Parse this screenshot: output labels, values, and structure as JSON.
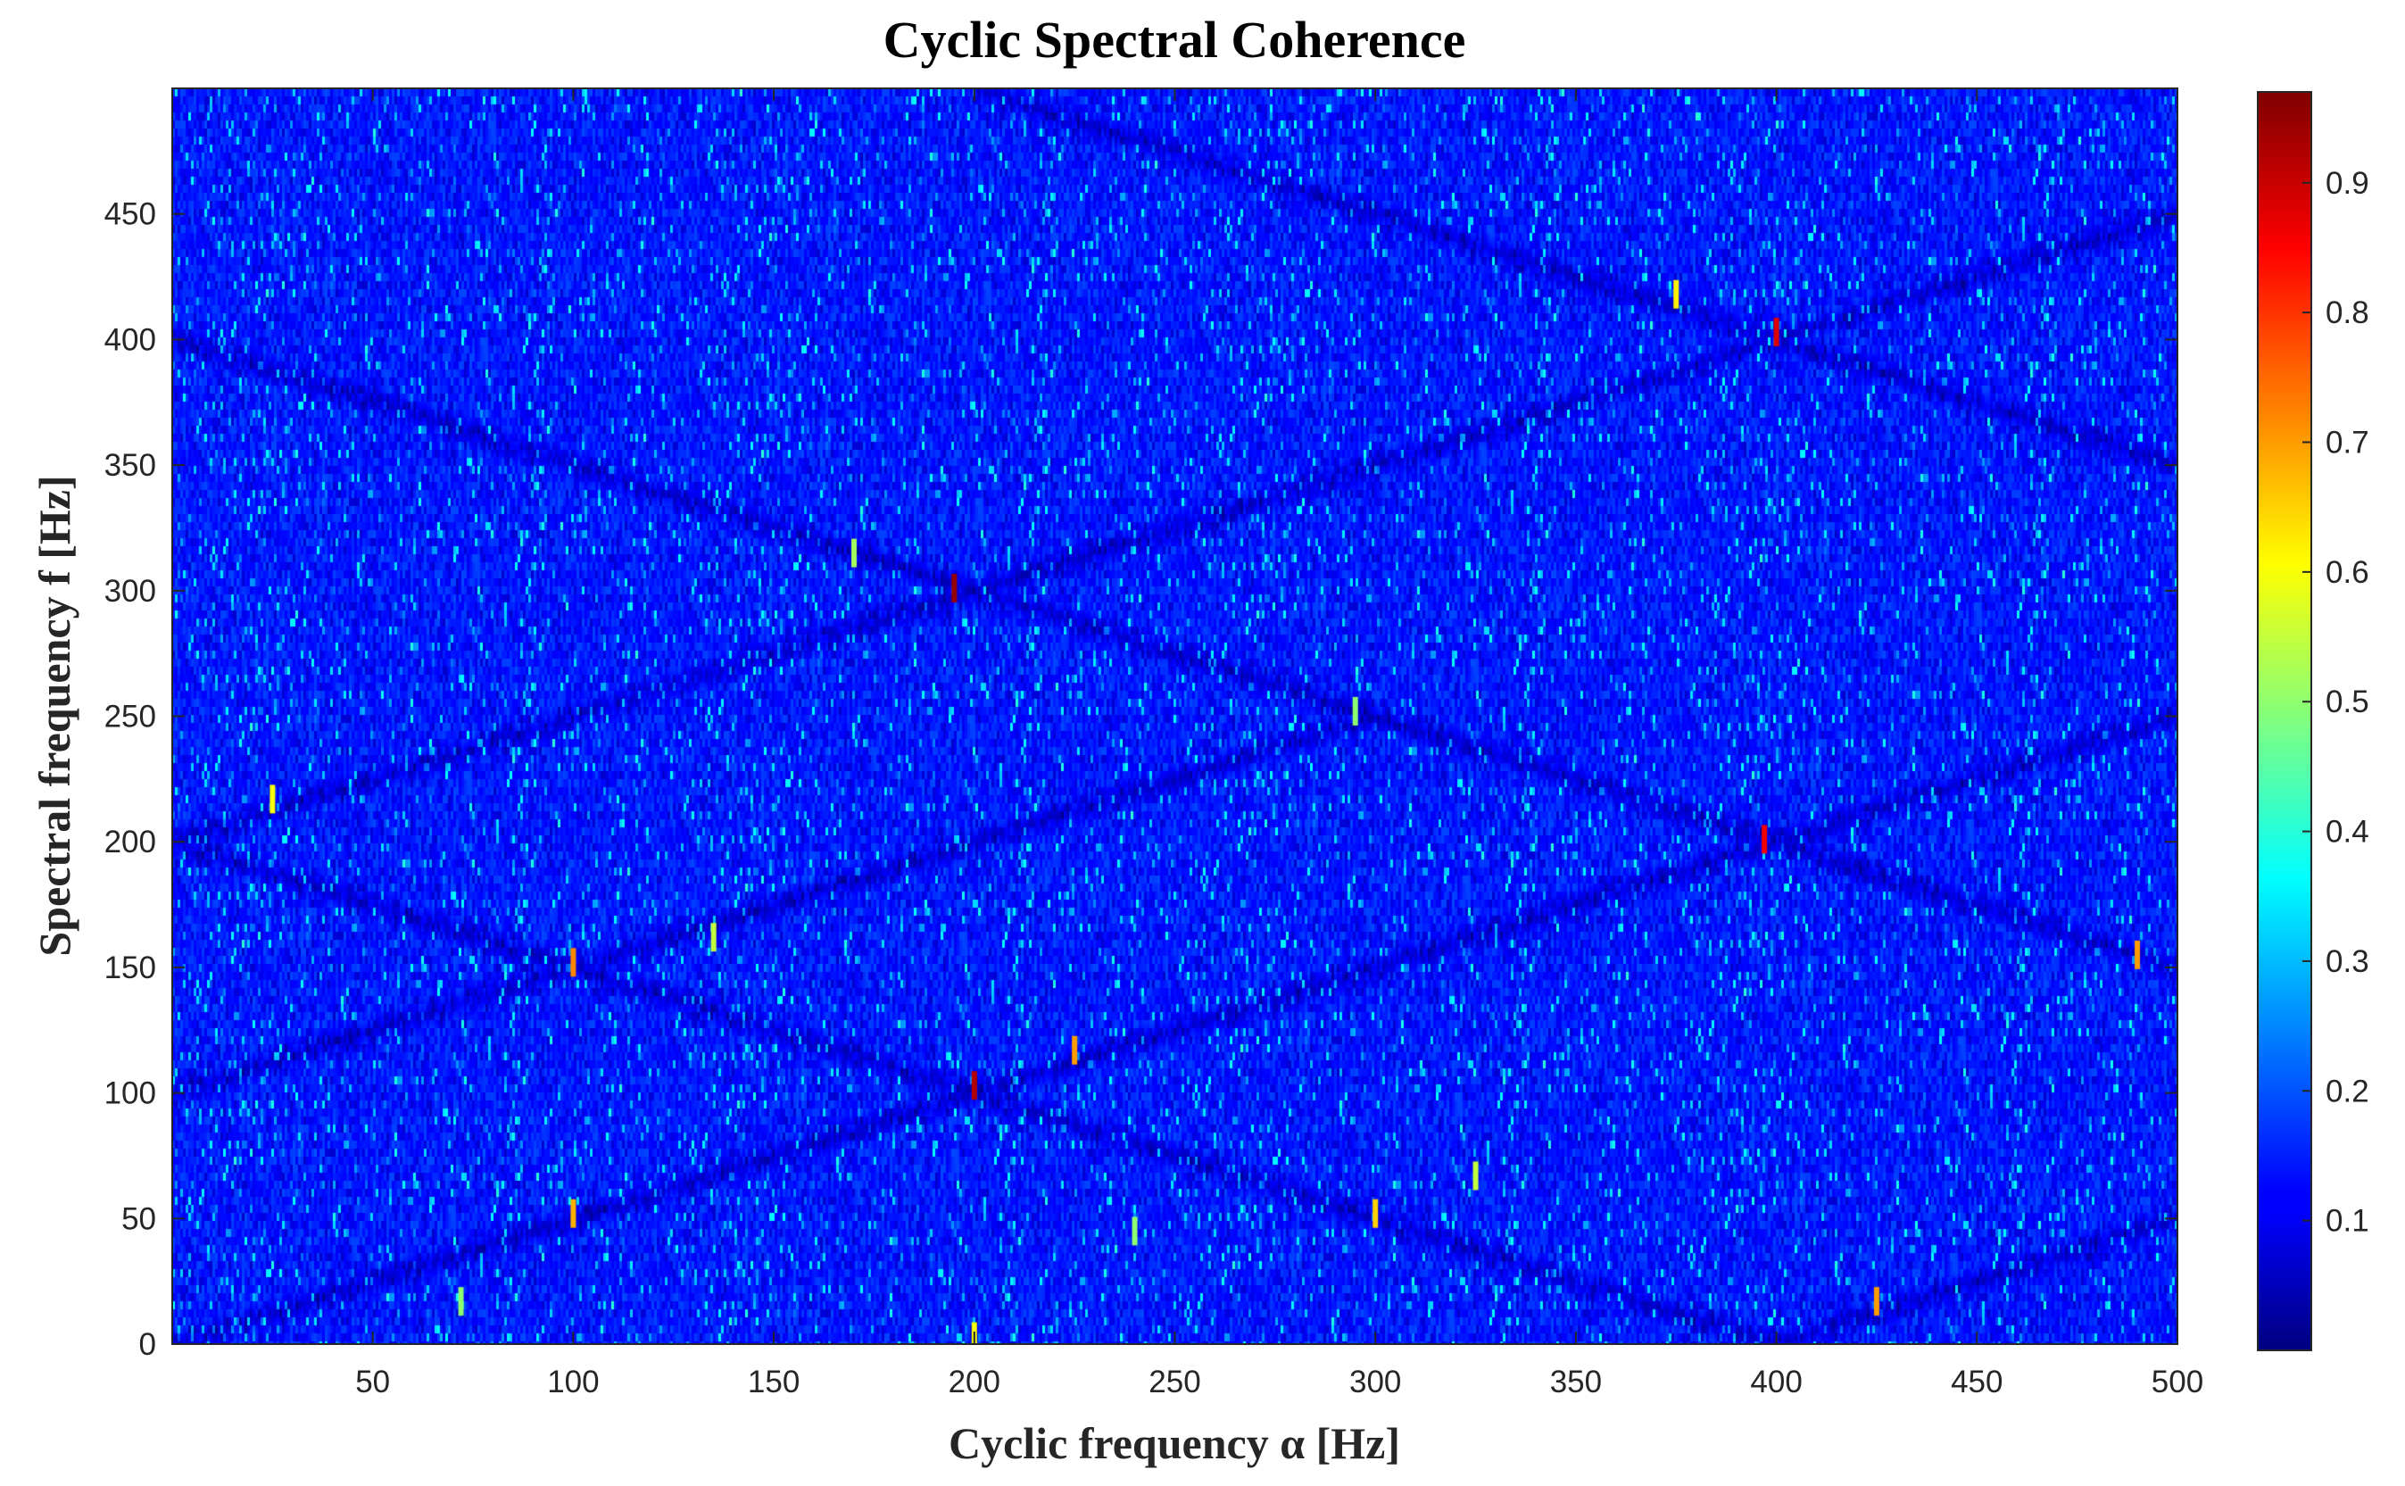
{
  "chart_data": {
    "type": "heatmap",
    "title": "Cyclic Spectral Coherence",
    "xlabel": "Cyclic frequency α [Hz]",
    "ylabel": "Spectral frequency f [Hz]",
    "xlim": [
      0,
      500
    ],
    "ylim": [
      0,
      500
    ],
    "x_ticks": [
      50,
      100,
      150,
      200,
      250,
      300,
      350,
      400,
      450,
      500
    ],
    "y_ticks": [
      0,
      50,
      100,
      150,
      200,
      250,
      300,
      350,
      400,
      450
    ],
    "colorbar": {
      "range": [
        0,
        0.97
      ],
      "ticks": [
        0.1,
        0.2,
        0.3,
        0.4,
        0.5,
        0.6,
        0.7,
        0.8,
        0.9
      ],
      "colormap": "jet"
    },
    "background_level": 0.15,
    "ridge_lines": [
      {
        "from": [
          0,
          200
        ],
        "to": [
          500,
          450
        ]
      },
      {
        "from": [
          0,
          400
        ],
        "to": [
          500,
          150
        ]
      },
      {
        "from": [
          0,
          200
        ],
        "to": [
          400,
          0
        ]
      },
      {
        "from": [
          400,
          0
        ],
        "to": [
          500,
          50
        ]
      },
      {
        "from": [
          0,
          100
        ],
        "to": [
          300,
          250
        ]
      },
      {
        "from": [
          200,
          100
        ],
        "to": [
          500,
          250
        ]
      },
      {
        "from": [
          0,
          0
        ],
        "to": [
          200,
          100
        ]
      },
      {
        "from": [
          200,
          500
        ],
        "to": [
          500,
          350
        ]
      }
    ],
    "peaks": [
      {
        "alpha": 195,
        "f": 301,
        "value": 0.95
      },
      {
        "alpha": 200,
        "f": 103,
        "value": 0.92
      },
      {
        "alpha": 400,
        "f": 403,
        "value": 0.88
      },
      {
        "alpha": 397,
        "f": 201,
        "value": 0.86
      },
      {
        "alpha": 100,
        "f": 152,
        "value": 0.72
      },
      {
        "alpha": 100,
        "f": 52,
        "value": 0.68
      },
      {
        "alpha": 300,
        "f": 52,
        "value": 0.65
      },
      {
        "alpha": 225,
        "f": 117,
        "value": 0.7
      },
      {
        "alpha": 375,
        "f": 418,
        "value": 0.62
      },
      {
        "alpha": 425,
        "f": 17,
        "value": 0.7
      },
      {
        "alpha": 25,
        "f": 217,
        "value": 0.6
      },
      {
        "alpha": 325,
        "f": 67,
        "value": 0.55
      },
      {
        "alpha": 490,
        "f": 155,
        "value": 0.7
      },
      {
        "alpha": 295,
        "f": 252,
        "value": 0.5
      },
      {
        "alpha": 170,
        "f": 315,
        "value": 0.52
      },
      {
        "alpha": 135,
        "f": 162,
        "value": 0.55
      },
      {
        "alpha": 72,
        "f": 17,
        "value": 0.5
      },
      {
        "alpha": 200,
        "f": 3,
        "value": 0.6
      },
      {
        "alpha": 240,
        "f": 45,
        "value": 0.5
      }
    ]
  }
}
